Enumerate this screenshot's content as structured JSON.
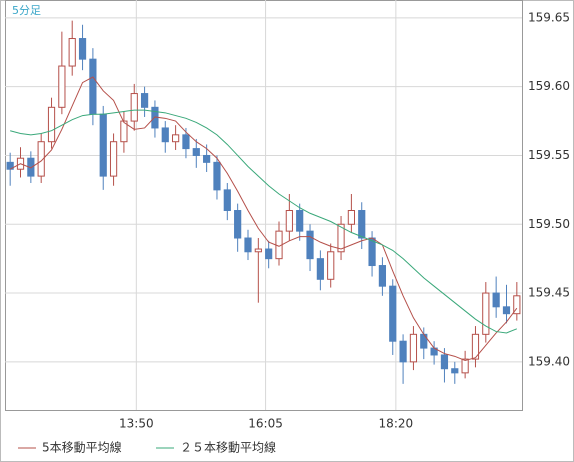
{
  "chart_data": {
    "type": "candlestick",
    "title": "5分足",
    "ohlc": [
      [
        159.545,
        159.552,
        159.528,
        159.54
      ],
      [
        159.54,
        159.556,
        159.534,
        159.548
      ],
      [
        159.548,
        159.553,
        159.53,
        159.535
      ],
      [
        159.535,
        159.566,
        159.53,
        159.56
      ],
      [
        159.56,
        159.592,
        159.555,
        159.585
      ],
      [
        159.585,
        159.64,
        159.58,
        159.615
      ],
      [
        159.615,
        159.648,
        159.608,
        159.635
      ],
      [
        159.635,
        159.645,
        159.612,
        159.62
      ],
      [
        159.62,
        159.628,
        159.572,
        159.58
      ],
      [
        159.58,
        159.586,
        159.525,
        159.535
      ],
      [
        159.535,
        159.566,
        159.528,
        159.56
      ],
      [
        159.56,
        159.582,
        159.552,
        159.575
      ],
      [
        159.575,
        159.602,
        159.568,
        159.595
      ],
      [
        159.595,
        159.6,
        159.578,
        159.585
      ],
      [
        159.585,
        159.59,
        159.563,
        159.57
      ],
      [
        159.57,
        159.575,
        159.552,
        159.56
      ],
      [
        159.56,
        159.572,
        159.554,
        159.565
      ],
      [
        159.565,
        159.57,
        159.548,
        159.555
      ],
      [
        159.555,
        159.562,
        159.541,
        159.55
      ],
      [
        159.55,
        159.558,
        159.538,
        159.545
      ],
      [
        159.545,
        159.55,
        159.518,
        159.525
      ],
      [
        159.525,
        159.53,
        159.503,
        159.51
      ],
      [
        159.51,
        159.515,
        159.48,
        159.49
      ],
      [
        159.49,
        159.496,
        159.474,
        159.48
      ],
      [
        159.48,
        159.49,
        159.443,
        159.482
      ],
      [
        159.482,
        159.488,
        159.468,
        159.475
      ],
      [
        159.475,
        159.502,
        159.47,
        159.495
      ],
      [
        159.495,
        159.522,
        159.488,
        159.51
      ],
      [
        159.51,
        159.515,
        159.488,
        159.495
      ],
      [
        159.495,
        159.5,
        159.466,
        159.475
      ],
      [
        159.475,
        159.481,
        159.452,
        159.46
      ],
      [
        159.46,
        159.486,
        159.454,
        159.48
      ],
      [
        159.48,
        159.506,
        159.474,
        159.5
      ],
      [
        159.5,
        159.522,
        159.494,
        159.51
      ],
      [
        159.51,
        159.516,
        159.482,
        159.49
      ],
      [
        159.49,
        159.495,
        159.462,
        159.47
      ],
      [
        159.47,
        159.476,
        159.448,
        159.455
      ],
      [
        159.455,
        159.46,
        159.405,
        159.415
      ],
      [
        159.415,
        159.42,
        159.384,
        159.4
      ],
      [
        159.4,
        159.426,
        159.394,
        159.42
      ],
      [
        159.42,
        159.425,
        159.402,
        159.41
      ],
      [
        159.41,
        159.415,
        159.398,
        159.405
      ],
      [
        159.405,
        159.41,
        159.385,
        159.395
      ],
      [
        159.395,
        159.4,
        159.384,
        159.392
      ],
      [
        159.392,
        159.408,
        159.388,
        159.402
      ],
      [
        159.402,
        159.426,
        159.396,
        159.42
      ],
      [
        159.42,
        159.458,
        159.414,
        159.45
      ],
      [
        159.45,
        159.462,
        159.432,
        159.44
      ],
      [
        159.44,
        159.456,
        159.428,
        159.435
      ],
      [
        159.435,
        159.458,
        159.43,
        159.448
      ]
    ],
    "up_color": "#b5504a",
    "down_color": "#4f81bd",
    "series": [
      {
        "name": "5本移動平均線",
        "color": "#b5504a",
        "values": [
          159.54,
          159.544,
          159.541,
          159.546,
          159.554,
          159.569,
          159.586,
          159.603,
          159.607,
          159.597,
          159.59,
          159.574,
          159.569,
          159.57,
          159.578,
          159.577,
          159.575,
          159.567,
          159.56,
          159.555,
          159.548,
          159.537,
          159.524,
          159.51,
          159.497,
          159.487,
          159.484,
          159.488,
          159.491,
          159.491,
          159.487,
          159.484,
          159.482,
          159.485,
          159.488,
          159.49,
          159.485,
          159.466,
          159.448,
          159.432,
          159.42,
          159.41,
          159.406,
          159.404,
          159.401,
          159.403,
          159.412,
          159.421,
          159.429,
          159.439
        ]
      },
      {
        "name": "２５本移動平均線",
        "color": "#3aa87a",
        "values": [
          159.568,
          159.566,
          159.565,
          159.566,
          159.568,
          159.572,
          159.576,
          159.579,
          159.58,
          159.58,
          159.581,
          159.582,
          159.583,
          159.583,
          159.582,
          159.581,
          159.579,
          159.577,
          159.574,
          159.57,
          159.565,
          159.558,
          159.55,
          159.542,
          159.535,
          159.528,
          159.522,
          159.517,
          159.512,
          159.508,
          159.505,
          159.502,
          159.498,
          159.494,
          159.491,
          159.488,
          159.485,
          159.481,
          159.475,
          159.468,
          159.461,
          159.455,
          159.449,
          159.443,
          159.437,
          159.431,
          159.426,
          159.422,
          159.421,
          159.424
        ]
      }
    ],
    "xlim": [
      -0.5,
      49.5
    ],
    "xticks": [
      {
        "value": 12.2,
        "label": "13:50"
      },
      {
        "value": 24.7,
        "label": "16:05"
      },
      {
        "value": 37.3,
        "label": "18:20"
      }
    ],
    "ylim": [
      159.365,
      159.663
    ],
    "yticks": [
      {
        "value": 159.4,
        "label": "159.40"
      },
      159.45,
      {
        "value": 159.5,
        "label": "159.50"
      },
      159.55,
      {
        "value": 159.6,
        "label": "159.60"
      },
      159.65
    ],
    "grid": true
  }
}
